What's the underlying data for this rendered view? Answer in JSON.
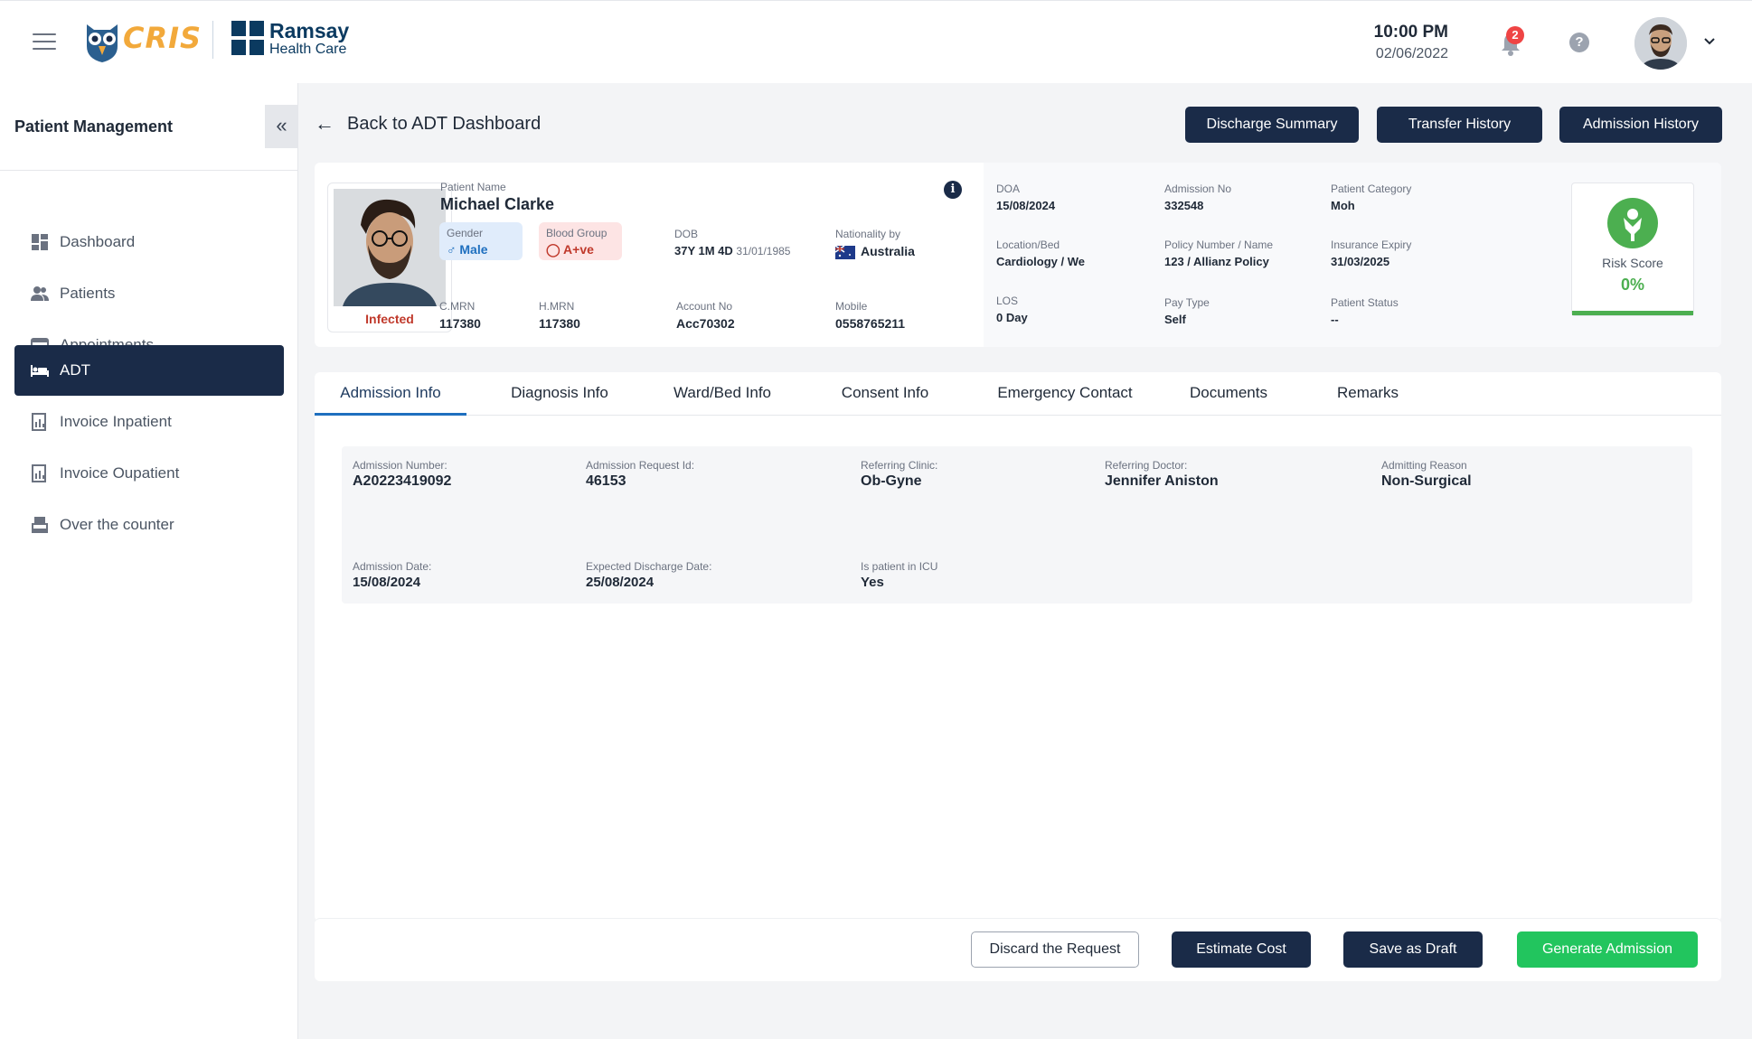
{
  "header": {
    "time": "10:00 PM",
    "date": "02/06/2022",
    "notifications_count": "2",
    "help_label": "?",
    "logo_cris": "CRIS",
    "logo_ramsay_line1": "Ramsay",
    "logo_ramsay_line2": "Health Care"
  },
  "sidebar": {
    "title": "Patient Management",
    "collapse_label": "«",
    "items": [
      {
        "label": "Dashboard",
        "icon": "dashboard-icon"
      },
      {
        "label": "Patients",
        "icon": "patients-icon"
      },
      {
        "label": "Appointments",
        "icon": "calendar-icon"
      },
      {
        "label": "ADT",
        "icon": "bed-icon",
        "active": true
      },
      {
        "label": "Invoice Inpatient",
        "icon": "invoice-icon"
      },
      {
        "label": "Invoice Oupatient",
        "icon": "invoice-icon"
      },
      {
        "label": "Over the counter",
        "icon": "counter-icon"
      }
    ]
  },
  "page": {
    "back_label": "Back to ADT Dashboard",
    "buttons": {
      "discharge_summary": "Discharge Summary",
      "transfer_history": "Transfer History",
      "admission_history": "Admission History"
    }
  },
  "patient": {
    "status": "Infected",
    "name_label": "Patient Name",
    "name": "Michael Clarke",
    "gender_label": "Gender",
    "gender": "Male",
    "blood_label": "Blood Group",
    "blood": "A+ve",
    "dob_label": "DOB",
    "dob_age": "37Y 1M 4D",
    "dob_date": "31/01/1985",
    "nationality_label": "Nationality by",
    "nationality": "Australia",
    "cmrn_label": "C.MRN",
    "cmrn": "117380",
    "hmrn_label": "H.MRN",
    "hmrn": "117380",
    "account_label": "Account No",
    "account": "Acc70302",
    "mobile_label": "Mobile",
    "mobile": "0558765211",
    "info_icon": "i"
  },
  "admission_summary": {
    "doa_label": "DOA",
    "doa": "15/08/2024",
    "admno_label": "Admission No",
    "admno": "332548",
    "category_label": "Patient Category",
    "category": "Moh",
    "location_label": "Location/Bed",
    "location": "Cardiology / We",
    "policy_label": "Policy Number / Name",
    "policy": "123 / Allianz Policy",
    "insurance_label": "Insurance Expiry",
    "insurance": "31/03/2025",
    "los_label": "LOS",
    "los": "0 Day",
    "paytype_label": "Pay Type",
    "paytype": "Self",
    "pstatus_label": "Patient Status",
    "pstatus": "--"
  },
  "risk": {
    "label": "Risk Score",
    "value": "0%",
    "color": "#4caf50"
  },
  "tabs": [
    {
      "label": "Admission  Info",
      "active": true
    },
    {
      "label": "Diagnosis Info"
    },
    {
      "label": "Ward/Bed Info"
    },
    {
      "label": "Consent Info"
    },
    {
      "label": "Emergency Contact"
    },
    {
      "label": "Documents"
    },
    {
      "label": "Remarks"
    }
  ],
  "admission_info": {
    "admission_number_label": "Admission Number:",
    "admission_number": "A20223419092",
    "request_id_label": "Admission Request Id:",
    "request_id": "46153",
    "clinic_label": "Referring Clinic:",
    "clinic": "Ob-Gyne",
    "doctor_label": "Referring Doctor:",
    "doctor": "Jennifer Aniston",
    "reason_label": "Admitting Reason",
    "reason": "Non-Surgical",
    "admission_date_label": "Admission Date:",
    "admission_date": "15/08/2024",
    "discharge_date_label": "Expected Discharge Date:",
    "discharge_date": "25/08/2024",
    "icu_label": "Is patient in ICU",
    "icu": "Yes"
  },
  "footer": {
    "discard": "Discard the Request",
    "estimate": "Estimate Cost",
    "draft": "Save as Draft",
    "generate": "Generate Admission"
  },
  "colors": {
    "primary_dark": "#1a2b48",
    "success": "#22c55e",
    "tab_accent": "#1e6fbf",
    "infected": "#c0392b"
  }
}
